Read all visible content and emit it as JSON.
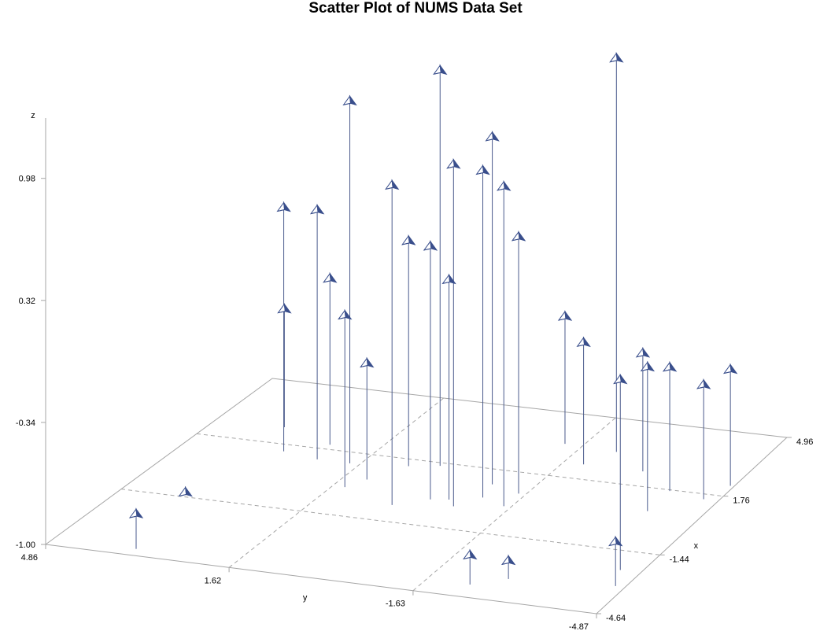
{
  "chart_data": {
    "type": "scatter",
    "title": "Scatter Plot of NUMS Data Set",
    "xlabel": "x",
    "ylabel": "y",
    "zlabel": "z",
    "x_ticks": [
      "4.96",
      "1.76",
      "-1.44",
      "-4.64"
    ],
    "y_ticks": [
      "4.86",
      "1.62",
      "-1.63",
      "-4.87"
    ],
    "z_ticks": [
      "0.98",
      "0.32",
      "-0.34",
      "-1.00"
    ],
    "xlim": [
      -4.64,
      4.96
    ],
    "ylim": [
      -4.87,
      4.86
    ],
    "zlim": [
      -1.0,
      1.3
    ],
    "marker": "pyramid",
    "drop_lines": true,
    "colors": {
      "marker": "#3a4f8c",
      "marker_light": "#ffffff",
      "axes": "#a6a6a6",
      "grid": "#a6a6a6",
      "needle": "#4a5a8c"
    },
    "points": [
      {
        "x": -1.2,
        "y": 3.8,
        "z": -1.0
      },
      {
        "x": -4.3,
        "y": 3.4,
        "z": -0.81
      },
      {
        "x": -3.5,
        "y": -2.9,
        "z": -0.9
      },
      {
        "x": -4.0,
        "y": -2.4,
        "z": -0.84
      },
      {
        "x": 1.4,
        "y": 3.1,
        "z": 0.32
      },
      {
        "x": 1.2,
        "y": 2.4,
        "z": 0.35
      },
      {
        "x": 2.0,
        "y": 2.5,
        "z": -0.1
      },
      {
        "x": 2.6,
        "y": 3.6,
        "z": -0.36
      },
      {
        "x": 1.4,
        "y": 0.8,
        "z": 0.22
      },
      {
        "x": 0.0,
        "y": 1.4,
        "z": -0.07
      },
      {
        "x": 0.5,
        "y": 1.2,
        "z": -0.37
      },
      {
        "x": 1.2,
        "y": 1.8,
        "z": 0.96
      },
      {
        "x": 1.6,
        "y": 0.3,
        "z": 1.14
      },
      {
        "x": -0.6,
        "y": 0.3,
        "z": 0.73
      },
      {
        "x": -0.1,
        "y": -0.2,
        "z": 0.37
      },
      {
        "x": 0.0,
        "y": -0.5,
        "z": 0.19
      },
      {
        "x": -0.3,
        "y": -0.7,
        "z": 0.85
      },
      {
        "x": 1.0,
        "y": -0.9,
        "z": 0.88
      },
      {
        "x": 0.3,
        "y": -1.0,
        "z": 0.77
      },
      {
        "x": 0.7,
        "y": -1.5,
        "z": 0.39
      },
      {
        "x": 0.0,
        "y": -1.5,
        "z": 0.73
      },
      {
        "x": 3.3,
        "y": -2.3,
        "z": 1.13
      },
      {
        "x": 3.4,
        "y": -1.3,
        "z": -0.31
      },
      {
        "x": 2.5,
        "y": -2.0,
        "z": -0.34
      },
      {
        "x": 2.5,
        "y": -3.1,
        "z": -0.36
      },
      {
        "x": 0.6,
        "y": -3.9,
        "z": -0.22
      },
      {
        "x": 1.7,
        "y": -3.9,
        "z": -0.33
      },
      {
        "x": -2.4,
        "y": -4.5,
        "z": 0.03
      },
      {
        "x": 2.3,
        "y": -4.8,
        "z": -0.37
      },
      {
        "x": 1.5,
        "y": -4.6,
        "z": -0.38
      },
      {
        "x": -3.2,
        "y": -4.7,
        "z": -0.76
      }
    ]
  }
}
